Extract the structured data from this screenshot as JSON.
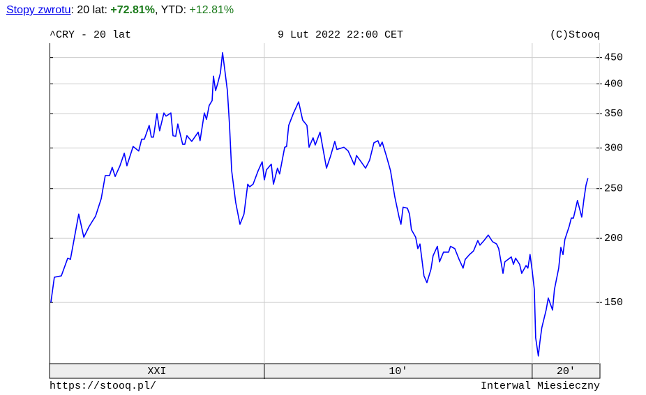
{
  "header": {
    "link": "Stopy zwrotu",
    "period_label": ": 20 lat: ",
    "total_return": "+72.81%",
    "ytd_label": ", YTD: ",
    "ytd_return": "+12.81%"
  },
  "chart_data": {
    "type": "line",
    "title": "^CRY - 20 lat",
    "date": "9 Lut 2022 22:00 CET",
    "source": "(C)Stooq",
    "footer_left": "https://stooq.pl/",
    "footer_right": "Interwal Miesieczny",
    "log_y": true,
    "grid": true,
    "xlim": [
      2001.98,
      2022.53
    ],
    "ylim": [
      114,
      480
    ],
    "yticks": [
      150,
      200,
      250,
      300,
      350,
      400,
      450
    ],
    "x_dividers": [
      2010,
      2020
    ],
    "x_band_labels": [
      "XXI",
      "10'",
      "20'"
    ],
    "x": [
      2002.03,
      2002.16,
      2002.42,
      2002.66,
      2002.76,
      2003.07,
      2003.26,
      2003.46,
      2003.7,
      2003.91,
      2004.06,
      2004.22,
      2004.32,
      2004.43,
      2004.61,
      2004.77,
      2004.87,
      2005.1,
      2005.31,
      2005.42,
      2005.52,
      2005.7,
      2005.78,
      2005.86,
      2005.99,
      2006.09,
      2006.25,
      2006.33,
      2006.51,
      2006.59,
      2006.69,
      2006.77,
      2006.95,
      2007.03,
      2007.11,
      2007.29,
      2007.53,
      2007.6,
      2007.76,
      2007.84,
      2007.94,
      2008.05,
      2008.1,
      2008.18,
      2008.26,
      2008.36,
      2008.44,
      2008.52,
      2008.62,
      2008.7,
      2008.78,
      2008.93,
      2009.09,
      2009.24,
      2009.38,
      2009.45,
      2009.58,
      2009.77,
      2009.92,
      2010.0,
      2010.08,
      2010.26,
      2010.34,
      2010.49,
      2010.57,
      2010.76,
      2010.83,
      2010.91,
      2011.09,
      2011.28,
      2011.43,
      2011.59,
      2011.67,
      2011.82,
      2011.9,
      2012.08,
      2012.16,
      2012.32,
      2012.47,
      2012.63,
      2012.71,
      2012.97,
      2013.13,
      2013.36,
      2013.44,
      2013.59,
      2013.78,
      2013.93,
      2014.09,
      2014.24,
      2014.32,
      2014.4,
      2014.56,
      2014.71,
      2014.87,
      2015.03,
      2015.1,
      2015.18,
      2015.34,
      2015.42,
      2015.49,
      2015.65,
      2015.73,
      2015.81,
      2015.96,
      2016.07,
      2016.22,
      2016.3,
      2016.46,
      2016.54,
      2016.69,
      2016.88,
      2016.95,
      2017.11,
      2017.27,
      2017.42,
      2017.5,
      2017.66,
      2017.81,
      2017.97,
      2018.05,
      2018.2,
      2018.36,
      2018.52,
      2018.67,
      2018.75,
      2018.91,
      2018.98,
      2019.22,
      2019.3,
      2019.38,
      2019.53,
      2019.61,
      2019.77,
      2019.84,
      2019.92,
      2020.0,
      2020.08,
      2020.13,
      2020.23,
      2020.29,
      2020.36,
      2020.52,
      2020.6,
      2020.76,
      2020.83,
      2020.99,
      2021.07,
      2021.15,
      2021.22,
      2021.38,
      2021.46,
      2021.54,
      2021.69,
      2021.85,
      2021.93,
      2022.01,
      2022.08
    ],
    "series": [
      {
        "color": "#0000ff",
        "values": [
          150,
          168,
          169,
          183,
          182,
          223,
          201,
          211,
          221,
          239,
          265,
          265,
          275,
          264,
          277,
          293,
          277,
          302,
          296,
          312,
          312,
          332,
          315,
          315,
          350,
          324,
          351,
          346,
          351,
          317,
          316,
          334,
          305,
          305,
          317,
          309,
          322,
          310,
          351,
          341,
          363,
          371,
          414,
          388,
          401,
          420,
          460,
          427,
          388,
          332,
          271,
          235,
          213,
          223,
          255,
          252,
          255,
          271,
          282,
          260,
          272,
          279,
          255,
          274,
          267,
          301,
          302,
          332,
          351,
          369,
          340,
          332,
          301,
          314,
          304,
          322,
          305,
          274,
          289,
          309,
          298,
          301,
          296,
          278,
          290,
          283,
          274,
          284,
          307,
          310,
          302,
          308,
          289,
          271,
          241,
          220,
          213,
          230,
          229,
          223,
          208,
          201,
          191,
          195,
          169,
          164,
          174,
          185,
          193,
          180,
          188,
          188,
          193,
          191,
          182,
          175,
          182,
          186,
          189,
          198,
          194,
          198,
          203,
          197,
          195,
          191,
          171,
          180,
          184,
          178,
          183,
          178,
          171,
          177,
          175,
          186,
          173,
          159,
          128,
          118,
          126,
          134,
          145,
          153,
          145,
          159,
          175,
          192,
          186,
          199,
          211,
          219,
          219,
          237,
          220,
          238,
          254,
          262
        ]
      }
    ]
  }
}
